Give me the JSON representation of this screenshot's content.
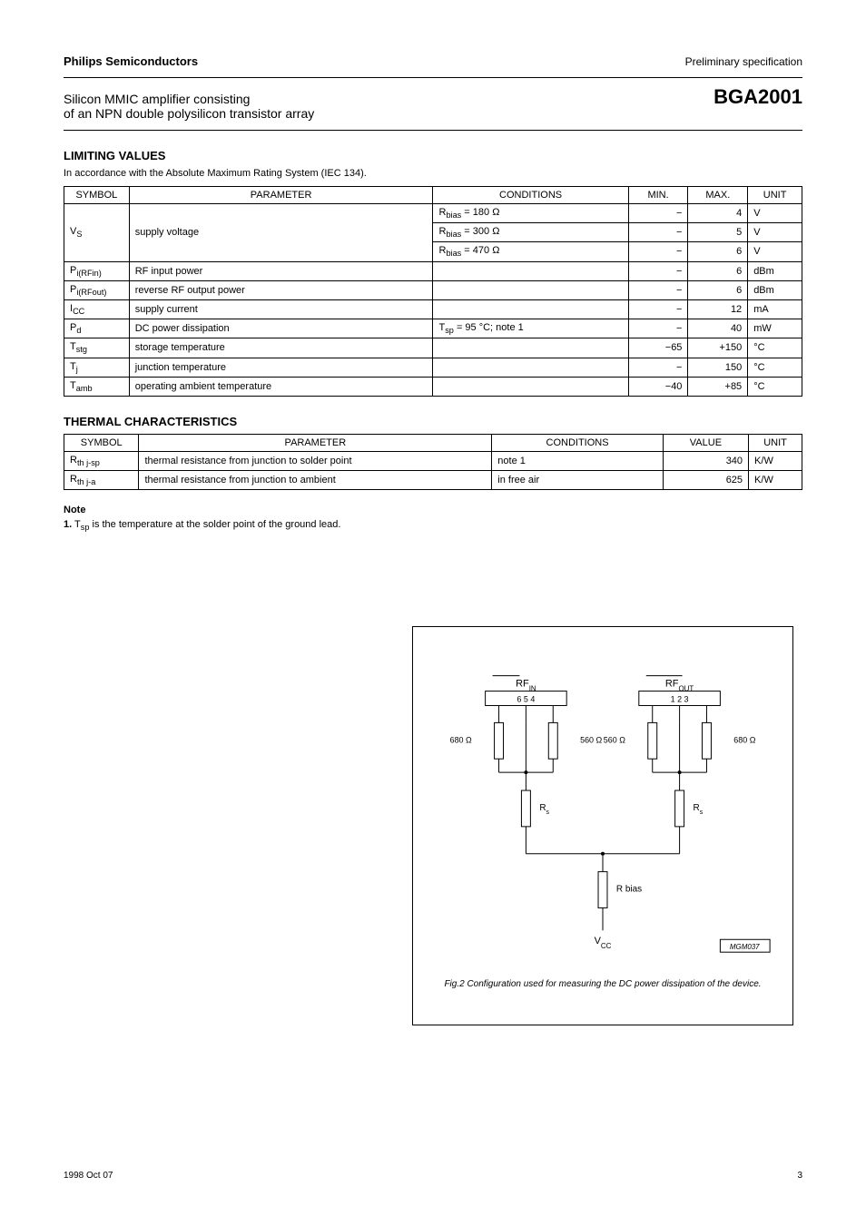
{
  "header": {
    "company": "Philips Semiconductors",
    "datasheet_type": "Preliminary specification",
    "product_desc_line1": "Silicon MMIC amplifier consisting",
    "product_desc_line2": "of an NPN double polysilicon transistor array",
    "product_code": "BGA2001"
  },
  "limiting": {
    "title": "LIMITING VALUES",
    "subtitle": "In accordance with the Absolute Maximum Rating System (IEC 134).",
    "columns": [
      "SYMBOL",
      "PARAMETER",
      "CONDITIONS",
      "MIN.",
      "MAX.",
      "UNIT"
    ],
    "rows": [
      {
        "sym": "V<sub>S</sub>",
        "param": "supply voltage",
        "rowspan": 3,
        "sub": [
          {
            "cond": "R<sub>bias</sub> = 180 Ω",
            "min": "−",
            "max": "4",
            "unit": "V"
          },
          {
            "cond": "R<sub>bias</sub> = 300 Ω",
            "min": "−",
            "max": "5",
            "unit": "V"
          },
          {
            "cond": "R<sub>bias</sub> = 470 Ω",
            "min": "−",
            "max": "6",
            "unit": "V"
          }
        ]
      },
      {
        "sym": "P<sub>i(RFin)</sub>",
        "param": "RF input power",
        "cond": "",
        "min": "−",
        "max": "6",
        "unit": "dBm"
      },
      {
        "sym": "P<sub>i(RFout)</sub>",
        "param": "reverse RF output power",
        "cond": "",
        "min": "−",
        "max": "6",
        "unit": "dBm"
      },
      {
        "sym": "I<sub>CC</sub>",
        "param": "supply current",
        "cond": "",
        "min": "−",
        "max": "12",
        "unit": "mA"
      },
      {
        "sym": "P<sub>d</sub>",
        "param": "DC power dissipation",
        "cond": "T<sub>sp</sub> = 95 °C; note 1",
        "min": "−",
        "max": "40",
        "unit": "mW"
      },
      {
        "sym": "T<sub>stg</sub>",
        "param": "storage temperature",
        "cond": "",
        "min": "−65",
        "max": "+150",
        "unit": "°C"
      },
      {
        "sym": "T<sub>j</sub>",
        "param": "junction temperature",
        "cond": "",
        "min": "−",
        "max": "150",
        "unit": "°C"
      },
      {
        "sym": "T<sub>amb</sub>",
        "param": "operating ambient temperature",
        "cond": "",
        "min": "−40",
        "max": "+85",
        "unit": "°C"
      }
    ]
  },
  "thermal": {
    "title": "THERMAL CHARACTERISTICS",
    "columns": [
      "SYMBOL",
      "PARAMETER",
      "CONDITIONS",
      "VALUE",
      "UNIT"
    ],
    "rows": [
      {
        "sym": "R<sub>th j-sp</sub>",
        "param": "thermal resistance from junction to solder point",
        "cond": "note 1",
        "val": "340",
        "unit": "K/W"
      },
      {
        "sym": "R<sub>th j-a</sub>",
        "param": "thermal resistance from junction to ambient",
        "cond": "in free air",
        "val": "625",
        "unit": "K/W"
      }
    ]
  },
  "note": {
    "label": "Note",
    "text_prefix": "1.",
    "text": "T<sub>sp</sub> is the temperature at the solder point of the ground lead."
  },
  "figure": {
    "labels": {
      "rf_in_top": "6     5     4",
      "rf_out_top": "1     2     3",
      "rf_in": "RF<sub>IN</sub>",
      "rf_out": "RF<sub>OUT</sub>",
      "r680_left": "680 Ω",
      "r680_right": "680 Ω",
      "r560_left": "560 Ω",
      "r560_right": "560 Ω",
      "rs_left": "R<sub>s</sub>",
      "rs_right": "R<sub>s</sub>",
      "r_bias": "R bias",
      "vcc": "V<sub>CC</sub>",
      "diagram_id": "MGM037"
    },
    "caption": "Fig.2  Configuration used for measuring the DC power dissipation of the device."
  },
  "footer": {
    "date": "1998 Oct 07",
    "page": "3"
  },
  "style": {
    "bg": "#ffffff",
    "fg": "#000000",
    "font_body_pt": 11,
    "font_title_pt": 13,
    "border_color": "#000000"
  }
}
